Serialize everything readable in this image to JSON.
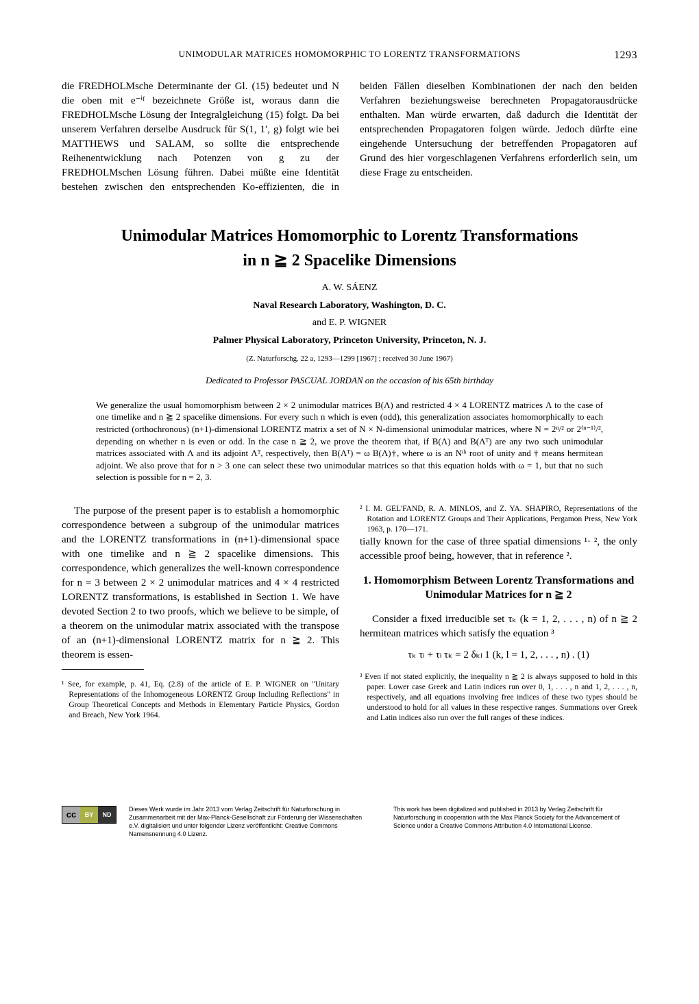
{
  "header": {
    "running_title": "UNIMODULAR MATRICES HOMOMORPHIC TO LORENTZ TRANSFORMATIONS",
    "page_number": "1293"
  },
  "prev_article_tail": {
    "col1": "die FREDHOLMsche Determinante der Gl. (15) bedeutet und N die oben mit e⁻ⁱᶠ bezeichnete Größe ist, woraus dann die FREDHOLMsche Lösung der Integralgleichung (15) folgt. Da bei unserem Verfahren derselbe Ausdruck für S(1, 1′, g) folgt wie bei MATTHEWS und SALAM, so sollte die entsprechende Reihenentwicklung nach Potenzen von g zu der FREDHOLMschen Lösung führen. Dabei müßte eine Identität bestehen zwischen den entsprechenden Ko-",
    "col2": "effizienten, die in beiden Fällen dieselben Kombinationen der nach den beiden Verfahren beziehungsweise berechneten Propagatorausdrücke enthalten. Man würde erwarten, daß dadurch die Identität der entsprechenden Propagatoren folgen würde. Jedoch dürfte eine eingehende Untersuchung der betreffenden Propagatoren auf Grund des hier vorgeschlagenen Verfahrens erforderlich sein, um diese Frage zu entscheiden."
  },
  "article": {
    "title_line1": "Unimodular Matrices Homomorphic to Lorentz Transformations",
    "title_line2": "in  n ≧ 2 Spacelike Dimensions",
    "author1": "A. W. SÁENZ",
    "affiliation1": "Naval Research Laboratory, Washington, D. C.",
    "and_author": "and  E. P. WIGNER",
    "affiliation2": "Palmer Physical Laboratory, Princeton University, Princeton, N. J.",
    "citation": "(Z. Naturforschg. 22 a, 1293—1299 [1967] ; received 30 June 1967)",
    "dedication": "Dedicated to Professor PASCUAL JORDAN on the occasion of his 65th birthday",
    "abstract": "We generalize the usual homomorphism between 2 × 2 unimodular matrices B(Λ) and restricted 4 × 4 LORENTZ matrices Λ to the case of one timelike and n ≧ 2 spacelike dimensions. For every such n which is even (odd), this generalization associates homomorphically to each restricted (orthochronous) (n+1)-dimensional LORENTZ matrix a set of N × N-dimensional unimodular matrices, where N = 2ⁿ/² or 2⁽ⁿ⁻¹⁾/², depending on whether n is even or odd. In the case n ≧ 2, we prove the theorem that, if B(Λ) and B(Λᵀ) are any two such unimodular matrices associated with Λ and its adjoint Λᵀ, respectively, then B(Λᵀ) = ω B(Λ)†, where ω is an Nᵗʰ root of unity and † means hermitean adjoint. We also prove that for n > 3 one can select these two unimodular matrices so that this equation holds with ω = 1, but that no such selection is possible for n = 2, 3."
  },
  "body": {
    "intro_para": "The purpose of the present paper is to establish a homomorphic correspondence between a subgroup of the unimodular matrices and the LORENTZ transformations in (n+1)-dimensional space with one timelike and n ≧ 2 spacelike dimensions. This correspondence, which generalizes the well-known correspondence for n = 3 between 2 × 2 unimodular matrices and 4 × 4 restricted LORENTZ transformations, is established in Section 1. We have devoted Section 2 to two proofs, which we believe to be simple, of a theorem on the unimodular matrix associated with the transpose of an (n+1)-dimensional LORENTZ matrix for n ≧ 2. This theorem is essen-",
    "intro_cont": "tially known for the case of three spatial dimensions ¹· ², the only accessible proof being, however, that in reference ².",
    "section1_heading": "1. Homomorphism Between Lorentz Transformations and Unimodular Matrices for n ≧ 2",
    "section1_para": "Consider a fixed irreducible set τₖ (k = 1, 2, . . . , n) of n ≧ 2 hermitean matrices which satisfy the equation ³",
    "equation1": "τₖ τₗ + τₗ τₖ = 2 δₖₗ 1     (k, l = 1, 2, . . . , n) .   (1)"
  },
  "footnotes": {
    "fn1": "¹ See, for example, p. 41, Eq. (2.8) of the article of E. P. WIGNER on \"Unitary Representations of the Inhomogeneous LORENTZ Group Including Reflections\" in Group Theoretical Concepts and Methods in Elementary Particle Physics, Gordon and Breach, New York 1964.",
    "fn2": "² I. M. GEL'FAND, R. A. MINLOS, and Z. YA. SHAPIRO, Representations of the Rotation and LORENTZ Groups and Their Applications, Pergamon Press, New York 1963, p. 170—171.",
    "fn3": "³ Even if not stated explicitly, the inequality n ≧ 2 is always supposed to hold in this paper. Lower case Greek and Latin indices run over 0, 1, . . . , n and 1, 2, . . . , n, respectively, and all equations involving free indices of these two types should be understood to hold for all values in these respective ranges. Summations over Greek and Latin indices also run over the full ranges of these indices."
  },
  "license": {
    "de": "Dieses Werk wurde im Jahr 2013 vom Verlag Zeitschrift für Naturforschung in Zusammenarbeit mit der Max-Planck-Gesellschaft zur Förderung der Wissenschaften e.V. digitalisiert und unter folgender Lizenz veröffentlicht: Creative Commons Namensnennung 4.0 Lizenz.",
    "en": "This work has been digitalized and published in 2013 by Verlag Zeitschrift für Naturforschung in cooperation with the Max Planck Society for the Advancement of Science under a Creative Commons Attribution 4.0 International License."
  }
}
